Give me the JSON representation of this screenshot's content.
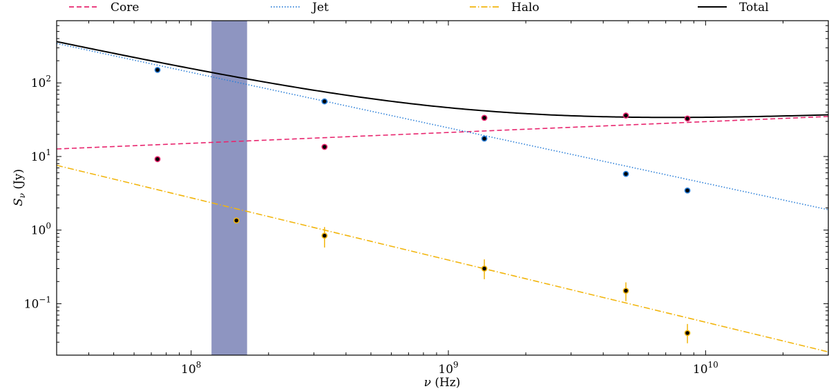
{
  "chart_data": {
    "type": "scatter",
    "title": "",
    "xlabel": "ν (Hz)",
    "ylabel": "S_ν (Jy)",
    "xscale": "log",
    "yscale": "log",
    "xlim": [
      30000000.0,
      30000000000.0
    ],
    "ylim": [
      0.02,
      700
    ],
    "grid": false,
    "legend_position": "top, above plot, single row",
    "x_ticks": [
      {
        "value": 100000000.0,
        "base": "10",
        "exp": "8"
      },
      {
        "value": 1000000000.0,
        "base": "10",
        "exp": "9"
      },
      {
        "value": 10000000000.0,
        "base": "10",
        "exp": "10"
      }
    ],
    "y_ticks": [
      {
        "value": 0.1,
        "base": "10",
        "exp": "−1"
      },
      {
        "value": 1,
        "base": "10",
        "exp": "0"
      },
      {
        "value": 10,
        "base": "10",
        "exp": "1"
      },
      {
        "value": 100,
        "base": "10",
        "exp": "2"
      }
    ],
    "shaded_band": {
      "x_range": [
        120000000.0,
        165000000.0
      ],
      "color": "#8e95c1"
    },
    "series": [
      {
        "name": "Core",
        "color": "#e8256e",
        "line_style": "dashed",
        "model": {
          "amplitude_at_1GHz": 21.2,
          "spectral_index": 0.147
        },
        "points": [
          {
            "x": 74000000.0,
            "y": 9.2
          },
          {
            "x": 330000000.0,
            "y": 13.5
          },
          {
            "x": 1380000000.0,
            "y": 33.5
          },
          {
            "x": 4900000000.0,
            "y": 36.0
          },
          {
            "x": 8500000000.0,
            "y": 32.8
          }
        ]
      },
      {
        "name": "Jet",
        "color": "#2b7fd8",
        "line_style": "dotted",
        "model": {
          "amplitude_at_1GHz": 24.5,
          "spectral_index": -0.753
        },
        "points": [
          {
            "x": 74000000.0,
            "y": 150
          },
          {
            "x": 330000000.0,
            "y": 56
          },
          {
            "x": 1380000000.0,
            "y": 17.5
          },
          {
            "x": 4900000000.0,
            "y": 5.8
          },
          {
            "x": 8500000000.0,
            "y": 3.45
          }
        ]
      },
      {
        "name": "Halo",
        "color": "#f2b50c",
        "line_style": "dashdot",
        "model": {
          "amplitude_at_1GHz": 0.392,
          "spectral_index": -0.845
        },
        "points": [
          {
            "x": 150000000.0,
            "y": 1.35,
            "yerr": [
              1.35,
              1.35
            ]
          },
          {
            "x": 330000000.0,
            "y": 0.84,
            "yerr": [
              0.58,
              1.1
            ]
          },
          {
            "x": 1380000000.0,
            "y": 0.3,
            "yerr": [
              0.215,
              0.4
            ]
          },
          {
            "x": 4900000000.0,
            "y": 0.15,
            "yerr": [
              0.108,
              0.195
            ]
          },
          {
            "x": 8500000000.0,
            "y": 0.04,
            "yerr": [
              0.029,
              0.053
            ]
          }
        ]
      },
      {
        "name": "Total",
        "color": "#000000",
        "line_style": "solid",
        "model": {
          "sum_of": [
            "Core",
            "Jet",
            "Halo"
          ]
        },
        "points": []
      }
    ]
  }
}
